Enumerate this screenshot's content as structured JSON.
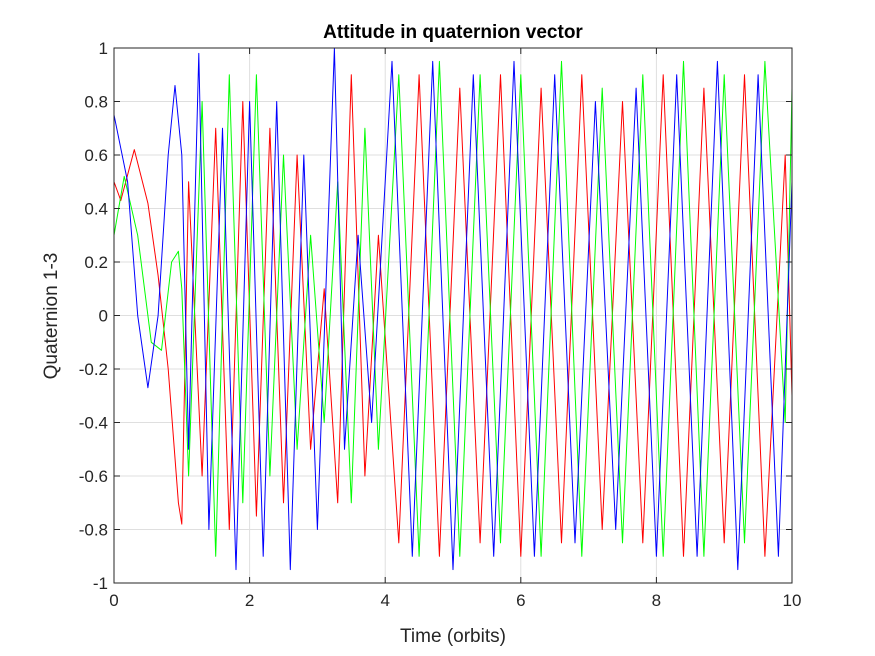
{
  "chart_data": {
    "type": "line",
    "title": "Attitude in quaternion vector",
    "xlabel": "Time (orbits)",
    "ylabel": "Quaternion 1-3",
    "xlim": [
      0,
      10
    ],
    "ylim": [
      -1,
      1
    ],
    "xticks": [
      0,
      2,
      4,
      6,
      8,
      10
    ],
    "yticks": [
      -1,
      -0.8,
      -0.6,
      -0.4,
      -0.2,
      0,
      0.2,
      0.4,
      0.6,
      0.8,
      1
    ],
    "grid": true,
    "legend": "none",
    "series": [
      {
        "color": "#ff0000",
        "values": [
          [
            0,
            0.5
          ],
          [
            0.1,
            0.43
          ],
          [
            0.3,
            0.62
          ],
          [
            0.5,
            0.42
          ],
          [
            0.65,
            0.15
          ],
          [
            0.8,
            -0.2
          ],
          [
            0.95,
            -0.7
          ],
          [
            1.0,
            -0.78
          ],
          [
            1.1,
            0.5
          ],
          [
            1.3,
            -0.6
          ],
          [
            1.5,
            0.7
          ],
          [
            1.7,
            -0.8
          ],
          [
            1.9,
            0.8
          ],
          [
            2.1,
            -0.75
          ],
          [
            2.3,
            0.7
          ],
          [
            2.5,
            -0.7
          ],
          [
            2.7,
            0.6
          ],
          [
            2.9,
            -0.5
          ],
          [
            3.1,
            0.1
          ],
          [
            3.3,
            -0.7
          ],
          [
            3.5,
            0.9
          ],
          [
            3.7,
            -0.6
          ],
          [
            3.9,
            0.3
          ],
          [
            4.2,
            -0.85
          ],
          [
            4.5,
            0.9
          ],
          [
            4.8,
            -0.9
          ],
          [
            5.1,
            0.85
          ],
          [
            5.4,
            -0.85
          ],
          [
            5.7,
            0.9
          ],
          [
            6.0,
            -0.9
          ],
          [
            6.3,
            0.85
          ],
          [
            6.6,
            -0.85
          ],
          [
            6.9,
            0.9
          ],
          [
            7.2,
            -0.8
          ],
          [
            7.5,
            0.8
          ],
          [
            7.8,
            -0.85
          ],
          [
            8.1,
            0.9
          ],
          [
            8.4,
            -0.9
          ],
          [
            8.7,
            0.85
          ],
          [
            9.0,
            -0.85
          ],
          [
            9.3,
            0.9
          ],
          [
            9.6,
            -0.9
          ],
          [
            9.9,
            0.6
          ],
          [
            10,
            -0.3
          ]
        ]
      },
      {
        "color": "#00ff00",
        "values": [
          [
            0,
            0.3
          ],
          [
            0.15,
            0.52
          ],
          [
            0.35,
            0.3
          ],
          [
            0.55,
            -0.1
          ],
          [
            0.7,
            -0.13
          ],
          [
            0.85,
            0.2
          ],
          [
            0.95,
            0.24
          ],
          [
            1.0,
            0.1
          ],
          [
            1.1,
            -0.6
          ],
          [
            1.3,
            0.8
          ],
          [
            1.5,
            -0.9
          ],
          [
            1.7,
            0.9
          ],
          [
            1.9,
            -0.7
          ],
          [
            2.1,
            0.9
          ],
          [
            2.3,
            -0.6
          ],
          [
            2.5,
            0.6
          ],
          [
            2.7,
            -0.5
          ],
          [
            2.9,
            0.3
          ],
          [
            3.1,
            -0.4
          ],
          [
            3.3,
            0.5
          ],
          [
            3.5,
            -0.7
          ],
          [
            3.7,
            0.7
          ],
          [
            3.9,
            -0.5
          ],
          [
            4.2,
            0.9
          ],
          [
            4.5,
            -0.9
          ],
          [
            4.8,
            0.95
          ],
          [
            5.1,
            -0.9
          ],
          [
            5.4,
            0.9
          ],
          [
            5.7,
            -0.85
          ],
          [
            6.0,
            0.9
          ],
          [
            6.3,
            -0.9
          ],
          [
            6.6,
            0.95
          ],
          [
            6.9,
            -0.9
          ],
          [
            7.2,
            0.85
          ],
          [
            7.5,
            -0.85
          ],
          [
            7.8,
            0.9
          ],
          [
            8.1,
            -0.9
          ],
          [
            8.4,
            0.95
          ],
          [
            8.7,
            -0.9
          ],
          [
            9.0,
            0.9
          ],
          [
            9.3,
            -0.85
          ],
          [
            9.6,
            0.95
          ],
          [
            9.9,
            -0.4
          ],
          [
            10,
            0.85
          ]
        ]
      },
      {
        "color": "#0000ff",
        "values": [
          [
            0,
            0.75
          ],
          [
            0.2,
            0.5
          ],
          [
            0.35,
            0.0
          ],
          [
            0.5,
            -0.27
          ],
          [
            0.65,
            0.0
          ],
          [
            0.8,
            0.6
          ],
          [
            0.9,
            0.86
          ],
          [
            1.0,
            0.6
          ],
          [
            1.1,
            -0.5
          ],
          [
            1.25,
            0.98
          ],
          [
            1.4,
            -0.8
          ],
          [
            1.6,
            0.7
          ],
          [
            1.8,
            -0.95
          ],
          [
            2.0,
            0.8
          ],
          [
            2.2,
            -0.9
          ],
          [
            2.4,
            0.8
          ],
          [
            2.6,
            -0.95
          ],
          [
            2.8,
            0.6
          ],
          [
            3.0,
            -0.8
          ],
          [
            3.25,
            1.0
          ],
          [
            3.4,
            -0.5
          ],
          [
            3.6,
            0.3
          ],
          [
            3.8,
            -0.4
          ],
          [
            4.1,
            0.95
          ],
          [
            4.4,
            -0.9
          ],
          [
            4.7,
            0.95
          ],
          [
            5.0,
            -0.95
          ],
          [
            5.3,
            0.9
          ],
          [
            5.6,
            -0.9
          ],
          [
            5.9,
            0.95
          ],
          [
            6.2,
            -0.9
          ],
          [
            6.5,
            0.9
          ],
          [
            6.8,
            -0.85
          ],
          [
            7.1,
            0.8
          ],
          [
            7.4,
            -0.8
          ],
          [
            7.7,
            0.85
          ],
          [
            8.0,
            -0.9
          ],
          [
            8.3,
            0.9
          ],
          [
            8.6,
            -0.9
          ],
          [
            8.9,
            0.95
          ],
          [
            9.2,
            -0.95
          ],
          [
            9.5,
            0.9
          ],
          [
            9.8,
            -0.9
          ],
          [
            10,
            0.5
          ]
        ]
      }
    ]
  }
}
